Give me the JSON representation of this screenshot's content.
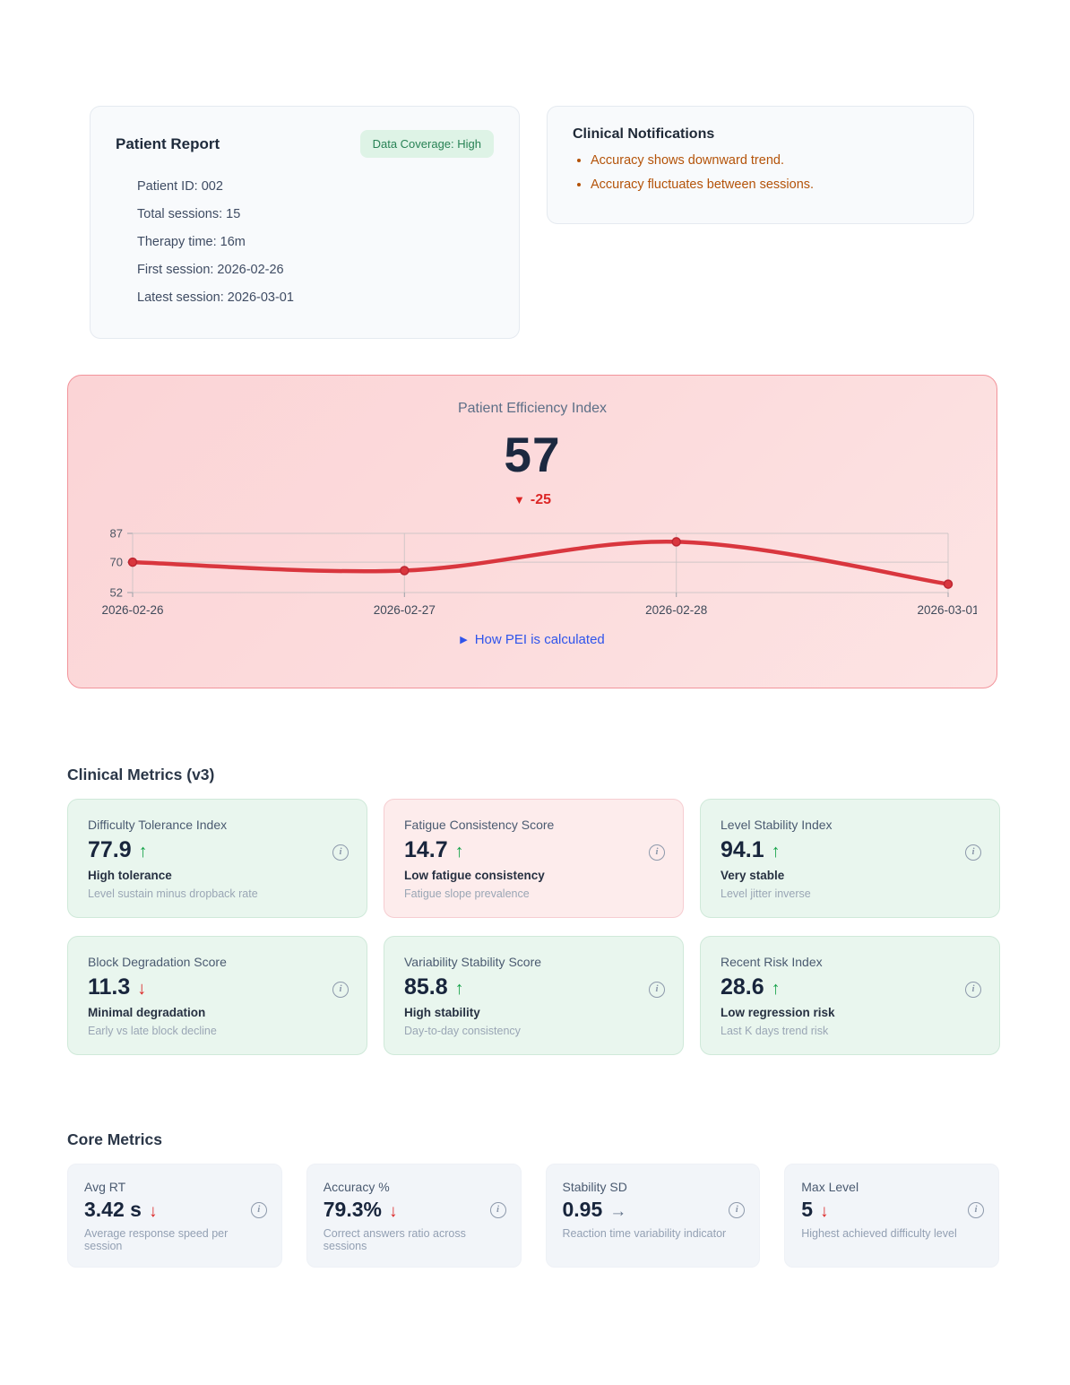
{
  "patient_report": {
    "title": "Patient Report",
    "badge": "Data Coverage: High",
    "rows": [
      "Patient ID: 002",
      "Total sessions: 15",
      "Therapy time: 16m",
      "First session: 2026-02-26",
      "Latest session: 2026-03-01"
    ]
  },
  "notifications": {
    "title": "Clinical Notifications",
    "items": [
      "Accuracy shows downward trend.",
      "Accuracy fluctuates between sessions."
    ]
  },
  "pei": {
    "title": "Patient Efficiency Index",
    "value": "57",
    "delta_glyph": "▼",
    "delta": "-25",
    "link_label": "How PEI is calculated",
    "link_glyph": "▶"
  },
  "chart_data": {
    "type": "line",
    "title": "Patient Efficiency Index trend",
    "x": [
      "2026-02-26",
      "2026-02-27",
      "2026-02-28",
      "2026-03-01"
    ],
    "values": [
      70,
      65,
      82,
      57
    ],
    "y_ticks": [
      87,
      70,
      52
    ],
    "ylim": [
      52,
      87
    ],
    "grid": true,
    "line_color": "#d9363e",
    "dot_stroke": "#bd2631"
  },
  "clinical_metrics": {
    "heading": "Clinical Metrics (v3)",
    "cards": [
      {
        "title": "Difficulty Tolerance Index",
        "value": "77.9",
        "arrow": {
          "glyph": "↑",
          "color": "#16a34a",
          "name": "trend-up-icon"
        },
        "status": "High tolerance",
        "desc": "Level sustain minus dropback rate",
        "tone": "tone-positive"
      },
      {
        "title": "Fatigue Consistency Score",
        "value": "14.7",
        "arrow": {
          "glyph": "↑",
          "color": "#16a34a",
          "name": "trend-up-icon"
        },
        "status": "Low fatigue consistency",
        "desc": "Fatigue slope prevalence",
        "tone": "tone-negative"
      },
      {
        "title": "Level Stability Index",
        "value": "94.1",
        "arrow": {
          "glyph": "↑",
          "color": "#16a34a",
          "name": "trend-up-icon"
        },
        "status": "Very stable",
        "desc": "Level jitter inverse",
        "tone": "tone-positive"
      },
      {
        "title": "Block Degradation Score",
        "value": "11.3",
        "arrow": {
          "glyph": "↓",
          "color": "#dc2626",
          "name": "trend-down-icon"
        },
        "status": "Minimal degradation",
        "desc": "Early vs late block decline",
        "tone": "tone-positive"
      },
      {
        "title": "Variability Stability Score",
        "value": "85.8",
        "arrow": {
          "glyph": "↑",
          "color": "#16a34a",
          "name": "trend-up-icon"
        },
        "status": "High stability",
        "desc": "Day-to-day consistency",
        "tone": "tone-positive"
      },
      {
        "title": "Recent Risk Index",
        "value": "28.6",
        "arrow": {
          "glyph": "↑",
          "color": "#16a34a",
          "name": "trend-up-icon"
        },
        "status": "Low regression risk",
        "desc": "Last K days trend risk",
        "tone": "tone-positive"
      }
    ]
  },
  "core_metrics": {
    "heading": "Core Metrics",
    "cards": [
      {
        "title": "Avg RT",
        "value": "3.42 s",
        "arrow": {
          "glyph": "↓",
          "color": "#dc2626",
          "name": "trend-down-icon"
        },
        "desc": "Average response speed per session"
      },
      {
        "title": "Accuracy %",
        "value": "79.3%",
        "arrow": {
          "glyph": "↓",
          "color": "#dc2626",
          "name": "trend-down-icon"
        },
        "desc": "Correct answers ratio across sessions"
      },
      {
        "title": "Stability SD",
        "value": "0.95",
        "arrow": {
          "glyph": "→",
          "color": "#64748b",
          "name": "trend-flat-icon"
        },
        "desc": "Reaction time variability indicator"
      },
      {
        "title": "Max Level",
        "value": "5",
        "arrow": {
          "glyph": "↓",
          "color": "#dc2626",
          "name": "trend-down-icon"
        },
        "desc": "Highest achieved difficulty level"
      }
    ]
  },
  "colors": {
    "positive_bg": "#e9f6ee",
    "negative_bg": "#fdecec",
    "pei_bg": "#fcdcdd",
    "pei_border": "#f2949b",
    "badge_bg": "#def3e6",
    "badge_text": "#288255",
    "alert_text": "#b45309",
    "delta_red": "#dc2626",
    "link_blue": "#2f54eb",
    "arrow_green": "#16a34a",
    "arrow_red": "#dc2626",
    "arrow_gray": "#64748b"
  }
}
